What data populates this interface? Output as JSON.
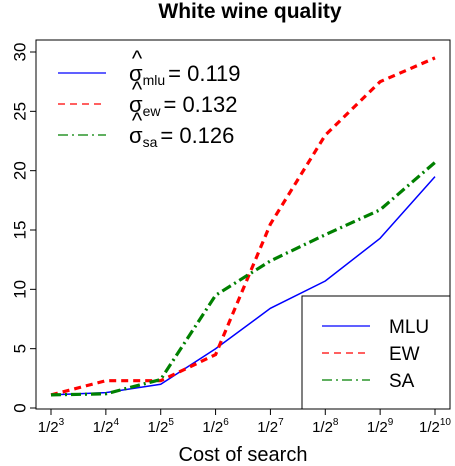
{
  "chart_data": {
    "type": "line",
    "title": "White wine quality",
    "xlabel": "Cost of search",
    "ylabel": "",
    "x_ticks": [
      {
        "base": "1/2",
        "exp": "3"
      },
      {
        "base": "1/2",
        "exp": "4"
      },
      {
        "base": "1/2",
        "exp": "5"
      },
      {
        "base": "1/2",
        "exp": "6"
      },
      {
        "base": "1/2",
        "exp": "7"
      },
      {
        "base": "1/2",
        "exp": "8"
      },
      {
        "base": "1/2",
        "exp": "9"
      },
      {
        "base": "1/2",
        "exp": "10"
      }
    ],
    "x_exponents": [
      3,
      4,
      5,
      6,
      7,
      8,
      9,
      10
    ],
    "y_ticks": [
      0,
      5,
      10,
      15,
      20,
      25,
      30
    ],
    "ylim": [
      0,
      31
    ],
    "series": [
      {
        "name": "MLU",
        "color": "#0000ff",
        "dash": "solid",
        "values": [
          1.1,
          1.3,
          2.0,
          5.0,
          8.4,
          10.7,
          14.3,
          19.5
        ]
      },
      {
        "name": "EW",
        "color": "#ff0000",
        "dash": "dashed",
        "values": [
          1.1,
          2.3,
          2.3,
          4.5,
          15.5,
          23.0,
          27.5,
          29.5
        ]
      },
      {
        "name": "SA",
        "color": "#008000",
        "dash": "dotdash",
        "values": [
          1.1,
          1.2,
          2.4,
          9.5,
          12.4,
          14.6,
          16.7,
          20.7
        ]
      }
    ],
    "sigma_legend": [
      {
        "symbol": "σ",
        "sub": "mlu",
        "value": "= 0.119",
        "color": "#0000ff",
        "dash": "solid"
      },
      {
        "symbol": "σ",
        "sub": "ew",
        "value": "= 0.132",
        "color": "#ff0000",
        "dash": "dashed"
      },
      {
        "symbol": "σ",
        "sub": "sa",
        "value": "= 0.126",
        "color": "#008000",
        "dash": "dotdash"
      }
    ],
    "legend_position": "bottom-right",
    "sigma_legend_position": "top-left",
    "grid": false
  }
}
